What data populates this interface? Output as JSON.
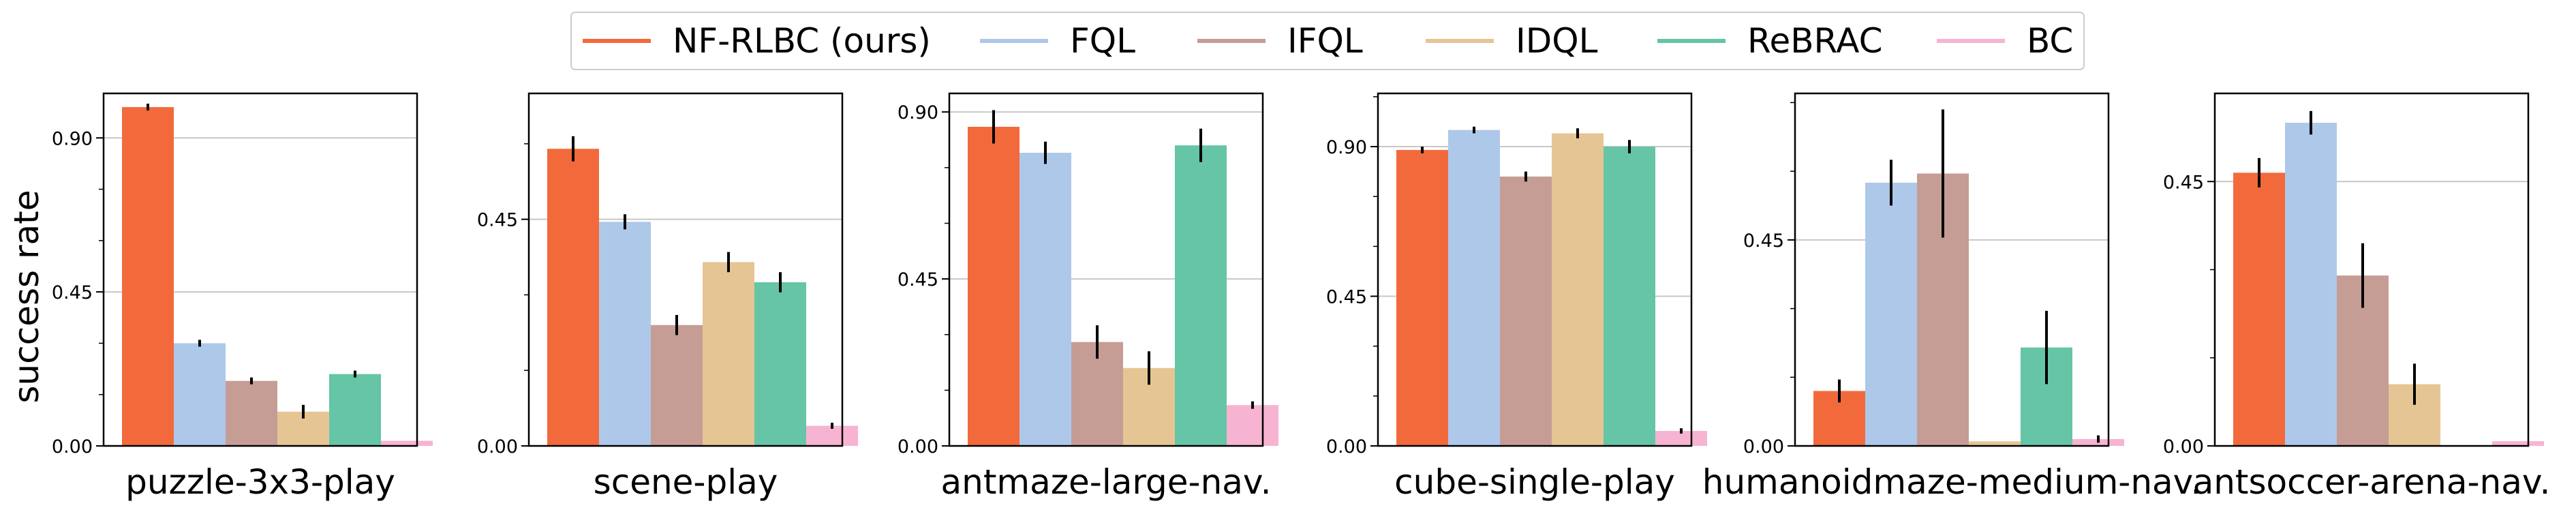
{
  "figure": {
    "ylabel": "success rate"
  },
  "legend": [
    {
      "name": "NF-RLBC (ours)",
      "color": "#f26a3c"
    },
    {
      "name": "FQL",
      "color": "#aec8ea"
    },
    {
      "name": "IFQL",
      "color": "#c59d95"
    },
    {
      "name": "IDQL",
      "color": "#e6c595"
    },
    {
      "name": "ReBRAC",
      "color": "#65c5a6"
    },
    {
      "name": "BC",
      "color": "#f7b4d2"
    }
  ],
  "chart_data": [
    {
      "type": "bar",
      "title": "puzzle-3x3-play",
      "ylabel": "success rate",
      "ylim": [
        0,
        1.03
      ],
      "yticks": [
        "0.00",
        "0.45",
        "0.90"
      ],
      "series": [
        {
          "name": "NF-RLBC (ours)",
          "value": 0.99,
          "err": 0.01
        },
        {
          "name": "FQL",
          "value": 0.3,
          "err": 0.01
        },
        {
          "name": "IFQL",
          "value": 0.19,
          "err": 0.01
        },
        {
          "name": "IDQL",
          "value": 0.1,
          "err": 0.02
        },
        {
          "name": "ReBRAC",
          "value": 0.21,
          "err": 0.01
        },
        {
          "name": "BC",
          "value": 0.015,
          "err": 0.0
        }
      ]
    },
    {
      "type": "bar",
      "title": "scene-play",
      "ylim": [
        0,
        0.7
      ],
      "yticks": [
        "0.00",
        "0.45"
      ],
      "series": [
        {
          "name": "NF-RLBC (ours)",
          "value": 0.59,
          "err": 0.025
        },
        {
          "name": "FQL",
          "value": 0.445,
          "err": 0.015
        },
        {
          "name": "IFQL",
          "value": 0.24,
          "err": 0.02
        },
        {
          "name": "IDQL",
          "value": 0.365,
          "err": 0.02
        },
        {
          "name": "ReBRAC",
          "value": 0.325,
          "err": 0.02
        },
        {
          "name": "BC",
          "value": 0.04,
          "err": 0.006
        }
      ]
    },
    {
      "type": "bar",
      "title": "antmaze-large-nav.",
      "ylim": [
        0,
        0.95
      ],
      "yticks": [
        "0.00",
        "0.45",
        "0.90"
      ],
      "series": [
        {
          "name": "NF-RLBC (ours)",
          "value": 0.86,
          "err": 0.045
        },
        {
          "name": "FQL",
          "value": 0.79,
          "err": 0.03
        },
        {
          "name": "IFQL",
          "value": 0.28,
          "err": 0.045
        },
        {
          "name": "IDQL",
          "value": 0.21,
          "err": 0.045
        },
        {
          "name": "ReBRAC",
          "value": 0.81,
          "err": 0.045
        },
        {
          "name": "BC",
          "value": 0.11,
          "err": 0.01
        }
      ]
    },
    {
      "type": "bar",
      "title": "cube-single-play",
      "ylim": [
        0,
        1.06
      ],
      "yticks": [
        "0.00",
        "0.45",
        "0.90"
      ],
      "series": [
        {
          "name": "NF-RLBC (ours)",
          "value": 0.89,
          "err": 0.01
        },
        {
          "name": "FQL",
          "value": 0.95,
          "err": 0.01
        },
        {
          "name": "IFQL",
          "value": 0.81,
          "err": 0.015
        },
        {
          "name": "IDQL",
          "value": 0.94,
          "err": 0.015
        },
        {
          "name": "ReBRAC",
          "value": 0.9,
          "err": 0.02
        },
        {
          "name": "BC",
          "value": 0.045,
          "err": 0.008
        }
      ]
    },
    {
      "type": "bar",
      "title": "humanoidmaze-medium-nav.",
      "ylim": [
        0,
        0.77
      ],
      "yticks": [
        "0.00",
        "0.45"
      ],
      "series": [
        {
          "name": "NF-RLBC (ours)",
          "value": 0.12,
          "err": 0.025
        },
        {
          "name": "FQL",
          "value": 0.575,
          "err": 0.05
        },
        {
          "name": "IFQL",
          "value": 0.595,
          "err": 0.14
        },
        {
          "name": "IDQL",
          "value": 0.01,
          "err": 0.0
        },
        {
          "name": "ReBRAC",
          "value": 0.215,
          "err": 0.08
        },
        {
          "name": "BC",
          "value": 0.015,
          "err": 0.008
        }
      ]
    },
    {
      "type": "bar",
      "title": "antsoccer-arena-nav.",
      "ylim": [
        0,
        0.6
      ],
      "yticks": [
        "0.00",
        "0.45"
      ],
      "series": [
        {
          "name": "NF-RLBC (ours)",
          "value": 0.465,
          "err": 0.025
        },
        {
          "name": "FQL",
          "value": 0.55,
          "err": 0.02
        },
        {
          "name": "IFQL",
          "value": 0.29,
          "err": 0.055
        },
        {
          "name": "IDQL",
          "value": 0.105,
          "err": 0.035
        },
        {
          "name": "ReBRAC",
          "value": 0.0,
          "err": 0.0
        },
        {
          "name": "BC",
          "value": 0.008,
          "err": 0.0
        }
      ]
    }
  ]
}
